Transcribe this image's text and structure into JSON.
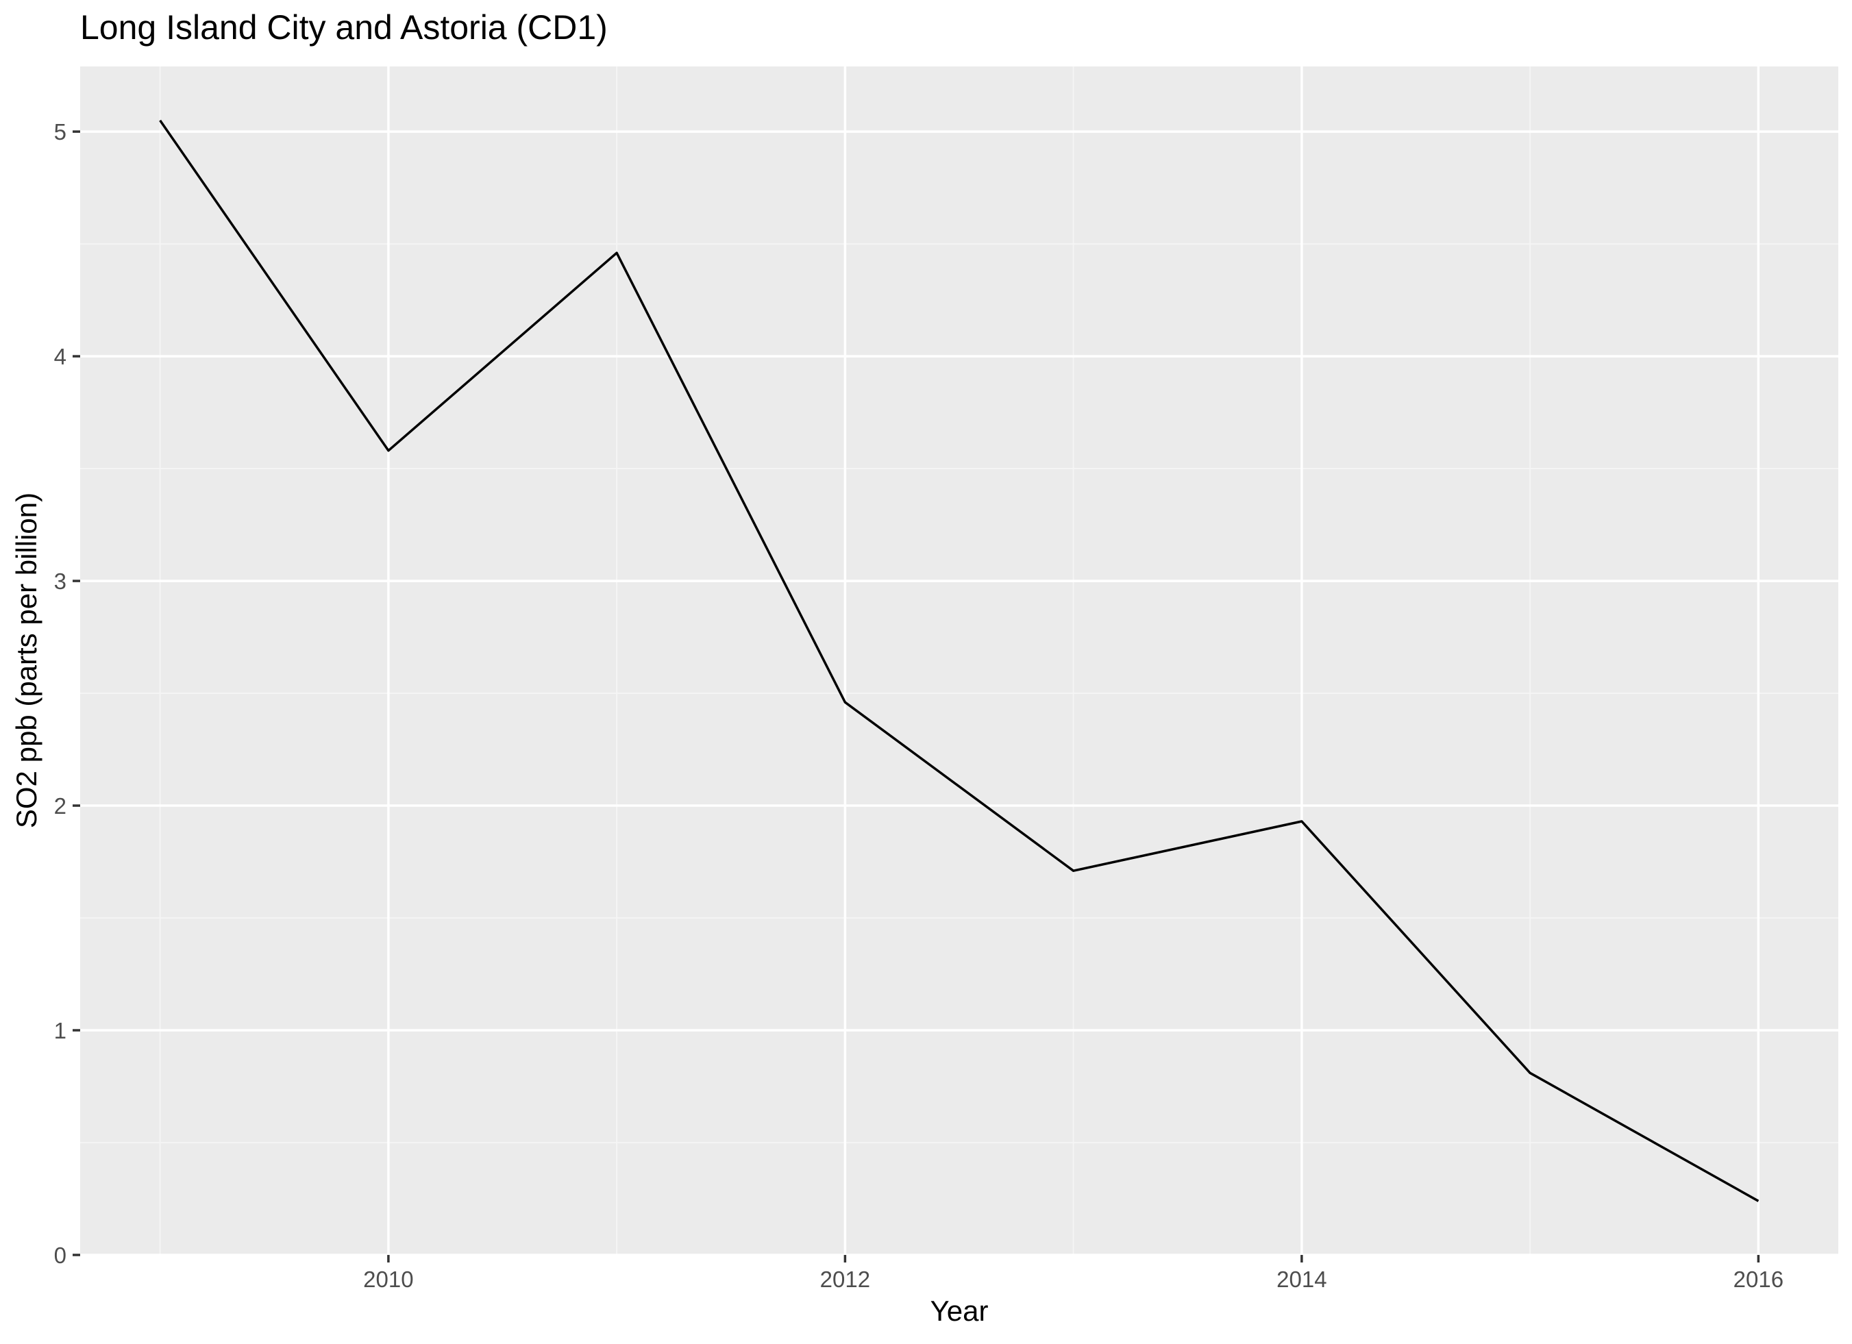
{
  "chart_data": {
    "type": "line",
    "title": "Long Island City and Astoria (CD1)",
    "xlabel": "Year",
    "ylabel": "SO2 ppb (parts per billion)",
    "x": [
      2009,
      2010,
      2011,
      2012,
      2013,
      2014,
      2015,
      2016
    ],
    "series": [
      {
        "values": [
          5.05,
          3.58,
          4.46,
          2.46,
          1.71,
          1.93,
          0.81,
          0.24
        ]
      }
    ],
    "xlim": [
      2008.65,
      2016.35
    ],
    "ylim": [
      0,
      5.29
    ],
    "x_ticks": [
      2010,
      2012,
      2014,
      2016
    ],
    "y_ticks": [
      0,
      1,
      2,
      3,
      4,
      5
    ],
    "grid": true,
    "legend": "none",
    "colors": {
      "panel_background": "#EBEBEB",
      "grid_major": "#FFFFFF",
      "grid_minor": "#F5F5F5",
      "line": "#000000",
      "tick_text": "#4D4D4D",
      "tick_mark": "#333333"
    }
  }
}
